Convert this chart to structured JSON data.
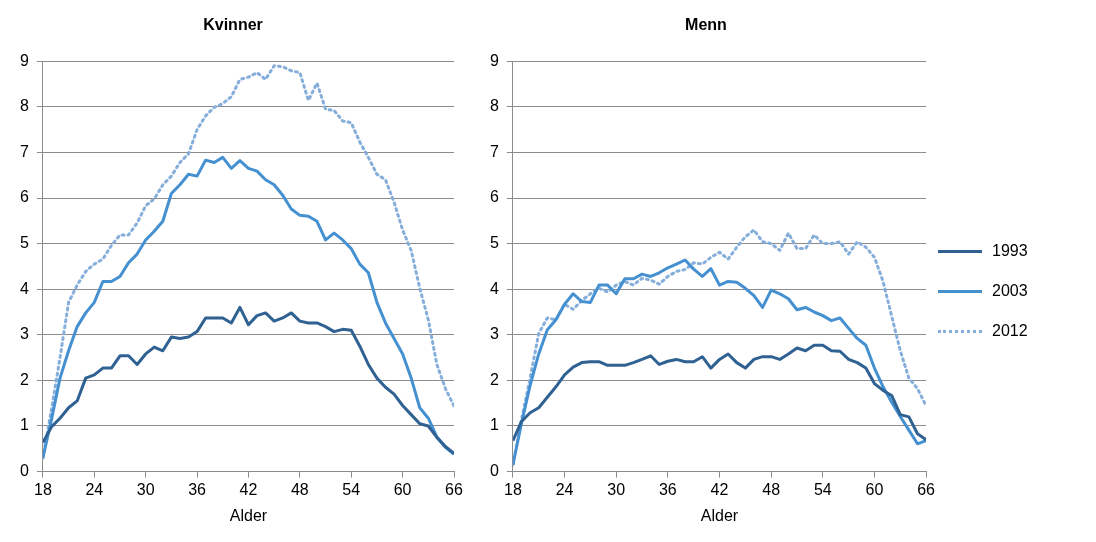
{
  "chart_data": [
    {
      "type": "line",
      "title": "Kvinner",
      "xlabel": "Alder",
      "x": [
        18,
        19,
        20,
        21,
        22,
        23,
        24,
        25,
        26,
        27,
        28,
        29,
        30,
        31,
        32,
        33,
        34,
        35,
        36,
        37,
        38,
        39,
        40,
        41,
        42,
        43,
        44,
        45,
        46,
        47,
        48,
        49,
        50,
        51,
        52,
        53,
        54,
        55,
        56,
        57,
        58,
        59,
        60,
        61,
        62,
        63,
        64,
        65,
        66
      ],
      "xlim": [
        18,
        66
      ],
      "xticks": [
        18,
        24,
        30,
        36,
        42,
        48,
        54,
        60,
        66
      ],
      "ylim": [
        0,
        9
      ],
      "yticks": [
        0,
        1,
        2,
        3,
        4,
        5,
        6,
        7,
        8,
        9
      ],
      "grid": "y",
      "legend": false,
      "marker": "none",
      "series": [
        {
          "color": "#2f6192",
          "line_style": "solid",
          "values": [
            0.64,
            0.98,
            1.17,
            1.4,
            1.55,
            2.05,
            2.12,
            2.27,
            2.27,
            2.54,
            2.54,
            2.35,
            2.58,
            2.73,
            2.65,
            2.95,
            2.92,
            2.95,
            3.07,
            3.37,
            3.37,
            3.37,
            3.26,
            3.6,
            3.22,
            3.42,
            3.48,
            3.3,
            3.37,
            3.48,
            3.3,
            3.26,
            3.26,
            3.18,
            3.07,
            3.12,
            3.1,
            2.75,
            2.35,
            2.05,
            1.85,
            1.7,
            1.45,
            1.25,
            1.05,
            1.0,
            0.75,
            0.55,
            0.4
          ]
        },
        {
          "color": "#4590d0",
          "line_style": "solid",
          "values": [
            0.3,
            1.14,
            2.05,
            2.65,
            3.18,
            3.48,
            3.71,
            4.17,
            4.17,
            4.28,
            4.58,
            4.77,
            5.08,
            5.27,
            5.49,
            6.1,
            6.29,
            6.52,
            6.48,
            6.83,
            6.78,
            6.89,
            6.65,
            6.82,
            6.65,
            6.59,
            6.4,
            6.29,
            6.06,
            5.76,
            5.62,
            5.6,
            5.49,
            5.08,
            5.23,
            5.08,
            4.89,
            4.55,
            4.36,
            3.71,
            3.26,
            2.92,
            2.58,
            2.05,
            1.4,
            1.17,
            0.76,
            0.53,
            0.38
          ]
        },
        {
          "color": "#86aedb",
          "line_style": "dotted",
          "values": [
            0.3,
            1.36,
            2.5,
            3.71,
            4.09,
            4.39,
            4.55,
            4.66,
            4.96,
            5.19,
            5.19,
            5.45,
            5.83,
            5.98,
            6.29,
            6.48,
            6.78,
            6.97,
            7.5,
            7.8,
            7.99,
            8.07,
            8.22,
            8.6,
            8.65,
            8.75,
            8.6,
            8.9,
            8.88,
            8.79,
            8.75,
            8.14,
            8.52,
            7.95,
            7.92,
            7.69,
            7.65,
            7.23,
            6.89,
            6.52,
            6.4,
            5.91,
            5.3,
            4.85,
            4.02,
            3.33,
            2.35,
            1.82,
            1.44
          ]
        }
      ]
    },
    {
      "type": "line",
      "title": "Menn",
      "xlabel": "Alder",
      "x": [
        18,
        19,
        20,
        21,
        22,
        23,
        24,
        25,
        26,
        27,
        28,
        29,
        30,
        31,
        32,
        33,
        34,
        35,
        36,
        37,
        38,
        39,
        40,
        41,
        42,
        43,
        44,
        45,
        46,
        47,
        48,
        49,
        50,
        51,
        52,
        53,
        54,
        55,
        56,
        57,
        58,
        59,
        60,
        61,
        62,
        63,
        64,
        65,
        66
      ],
      "xlim": [
        18,
        66
      ],
      "xticks": [
        18,
        24,
        30,
        36,
        42,
        48,
        54,
        60,
        66
      ],
      "ylim": [
        0,
        9
      ],
      "yticks": [
        0,
        1,
        2,
        3,
        4,
        5,
        6,
        7,
        8,
        9
      ],
      "grid": "y",
      "legend": "right",
      "marker": "none",
      "series": [
        {
          "name": "1993",
          "color": "#2f6192",
          "line_style": "solid",
          "values": [
            0.68,
            1.1,
            1.29,
            1.4,
            1.63,
            1.86,
            2.12,
            2.29,
            2.39,
            2.41,
            2.41,
            2.33,
            2.33,
            2.33,
            2.39,
            2.46,
            2.54,
            2.35,
            2.42,
            2.46,
            2.41,
            2.41,
            2.52,
            2.27,
            2.46,
            2.58,
            2.39,
            2.27,
            2.46,
            2.52,
            2.52,
            2.46,
            2.58,
            2.71,
            2.65,
            2.77,
            2.77,
            2.65,
            2.64,
            2.46,
            2.39,
            2.27,
            1.93,
            1.78,
            1.67,
            1.25,
            1.2,
            0.83,
            0.7
          ]
        },
        {
          "name": "2003",
          "color": "#4590d0",
          "line_style": "solid",
          "values": [
            0.15,
            1.06,
            1.89,
            2.58,
            3.11,
            3.33,
            3.67,
            3.9,
            3.73,
            3.71,
            4.09,
            4.09,
            3.9,
            4.23,
            4.23,
            4.33,
            4.28,
            4.36,
            4.47,
            4.55,
            4.64,
            4.44,
            4.28,
            4.45,
            4.09,
            4.17,
            4.15,
            4.02,
            3.86,
            3.6,
            3.98,
            3.9,
            3.79,
            3.55,
            3.6,
            3.5,
            3.42,
            3.31,
            3.37,
            3.14,
            2.92,
            2.77,
            2.27,
            1.86,
            1.52,
            1.21,
            0.91,
            0.61,
            0.68
          ]
        },
        {
          "name": "2012",
          "color": "#86aedb",
          "line_style": "dotted",
          "values": [
            0.15,
            1.14,
            2.05,
            3.03,
            3.37,
            3.33,
            3.67,
            3.56,
            3.75,
            3.9,
            4.02,
            3.94,
            4.09,
            4.17,
            4.09,
            4.24,
            4.2,
            4.11,
            4.28,
            4.39,
            4.43,
            4.58,
            4.55,
            4.7,
            4.81,
            4.66,
            4.92,
            5.15,
            5.3,
            5.04,
            5.0,
            4.85,
            5.23,
            4.89,
            4.89,
            5.19,
            5.0,
            5.0,
            5.04,
            4.77,
            5.04,
            4.92,
            4.7,
            4.17,
            3.41,
            2.65,
            2.05,
            1.82,
            1.44
          ]
        }
      ]
    }
  ]
}
